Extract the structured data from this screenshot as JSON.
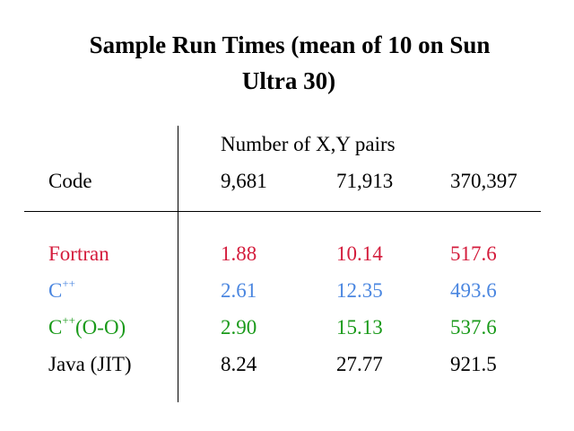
{
  "title": {
    "line1": "Sample Run Times (mean of 10 on Sun",
    "line2": "Ultra 30)"
  },
  "table": {
    "group_header": "Number of X,Y pairs",
    "code_header": "Code",
    "columns": [
      "9,681",
      "71,913",
      "370,397"
    ],
    "rows": [
      {
        "label": "Fortran",
        "label_sup": "",
        "label_suffix": "",
        "values": [
          "1.88",
          "10.14",
          "517.6"
        ],
        "color": "#d41c3c"
      },
      {
        "label": "C",
        "label_sup": "++",
        "label_suffix": "",
        "values": [
          "2.61",
          "12.35",
          "493.6"
        ],
        "color": "#4a86e0"
      },
      {
        "label": "C",
        "label_sup": "++",
        "label_suffix": "(O-O)",
        "values": [
          "2.90",
          "15.13",
          "537.6"
        ],
        "color": "#1a9a1a"
      },
      {
        "label": "Java (JIT)",
        "label_sup": "",
        "label_suffix": "",
        "values": [
          "8.24",
          "27.77",
          "921.5"
        ],
        "color": "#000000"
      }
    ]
  }
}
